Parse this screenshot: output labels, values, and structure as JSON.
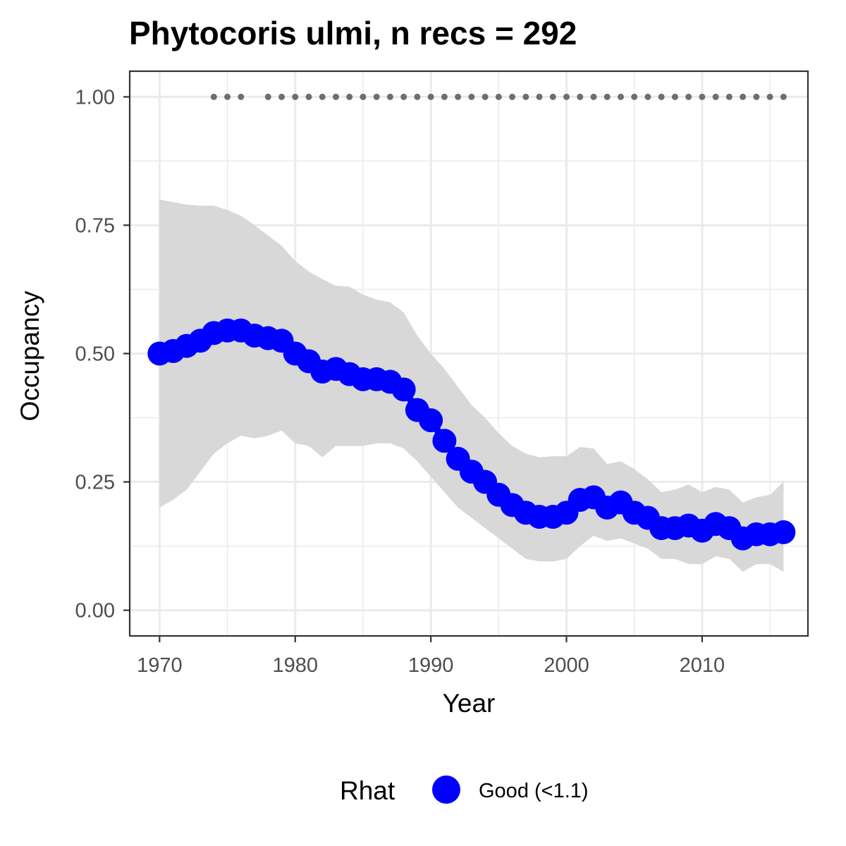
{
  "chart_data": {
    "type": "line",
    "title": "Phytocoris ulmi, n recs = 292",
    "xlabel": "Year",
    "ylabel": "Occupancy",
    "xlim": [
      1967.8,
      2017.8
    ],
    "ylim": [
      -0.05,
      1.05
    ],
    "x_ticks": [
      1970,
      1980,
      1990,
      2000,
      2010
    ],
    "x_tick_labels": [
      "1970",
      "1980",
      "1990",
      "2000",
      "2010"
    ],
    "y_ticks": [
      0,
      0.25,
      0.5,
      0.75,
      1
    ],
    "y_tick_labels": [
      "0.00",
      "0.25",
      "0.50",
      "0.75",
      "1.00"
    ],
    "grid": true,
    "legend": {
      "position": "bottom",
      "title": "Rhat",
      "items": [
        {
          "label": "Good (<1.1)",
          "color": "#0000ff"
        }
      ]
    },
    "colors": {
      "series": "#0000ff",
      "ribbon": "#d6d6d6",
      "record_years": "#6e6e6e",
      "grid": "#ebebeb",
      "panel_border": "#333333"
    },
    "series": [
      {
        "name": "Good (<1.1)",
        "x": [
          1970,
          1971,
          1972,
          1973,
          1974,
          1975,
          1976,
          1977,
          1978,
          1979,
          1980,
          1981,
          1982,
          1983,
          1984,
          1985,
          1986,
          1987,
          1988,
          1989,
          1990,
          1991,
          1992,
          1993,
          1994,
          1995,
          1996,
          1997,
          1998,
          1999,
          2000,
          2001,
          2002,
          2003,
          2004,
          2005,
          2006,
          2007,
          2008,
          2009,
          2010,
          2011,
          2012,
          2013,
          2014,
          2015,
          2016
        ],
        "values": [
          0.5,
          0.505,
          0.515,
          0.525,
          0.54,
          0.545,
          0.545,
          0.535,
          0.53,
          0.525,
          0.5,
          0.485,
          0.465,
          0.47,
          0.46,
          0.45,
          0.45,
          0.445,
          0.43,
          0.39,
          0.37,
          0.33,
          0.295,
          0.27,
          0.25,
          0.225,
          0.205,
          0.19,
          0.182,
          0.182,
          0.19,
          0.215,
          0.22,
          0.2,
          0.21,
          0.19,
          0.18,
          0.16,
          0.16,
          0.165,
          0.155,
          0.168,
          0.16,
          0.14,
          0.148,
          0.148,
          0.152
        ],
        "lower": [
          0.2,
          0.215,
          0.235,
          0.27,
          0.305,
          0.325,
          0.34,
          0.335,
          0.34,
          0.35,
          0.325,
          0.32,
          0.298,
          0.32,
          0.32,
          0.32,
          0.325,
          0.325,
          0.315,
          0.29,
          0.26,
          0.23,
          0.2,
          0.18,
          0.16,
          0.14,
          0.12,
          0.1,
          0.095,
          0.095,
          0.1,
          0.125,
          0.145,
          0.135,
          0.14,
          0.13,
          0.12,
          0.1,
          0.1,
          0.09,
          0.09,
          0.105,
          0.1,
          0.075,
          0.09,
          0.09,
          0.075
        ],
        "upper": [
          0.8,
          0.795,
          0.79,
          0.788,
          0.788,
          0.78,
          0.768,
          0.75,
          0.73,
          0.71,
          0.68,
          0.66,
          0.645,
          0.632,
          0.63,
          0.615,
          0.605,
          0.6,
          0.58,
          0.535,
          0.5,
          0.47,
          0.435,
          0.4,
          0.375,
          0.345,
          0.32,
          0.305,
          0.298,
          0.3,
          0.3,
          0.318,
          0.315,
          0.285,
          0.29,
          0.275,
          0.255,
          0.23,
          0.235,
          0.245,
          0.23,
          0.24,
          0.235,
          0.21,
          0.22,
          0.225,
          0.25
        ]
      }
    ],
    "record_years": {
      "y": 1,
      "x": [
        1974,
        1975,
        1976,
        1978,
        1979,
        1980,
        1981,
        1982,
        1983,
        1984,
        1985,
        1986,
        1987,
        1988,
        1989,
        1990,
        1991,
        1992,
        1993,
        1994,
        1995,
        1996,
        1997,
        1998,
        1999,
        2000,
        2001,
        2002,
        2003,
        2004,
        2005,
        2006,
        2007,
        2008,
        2009,
        2010,
        2011,
        2012,
        2013,
        2014,
        2015,
        2016
      ]
    }
  }
}
